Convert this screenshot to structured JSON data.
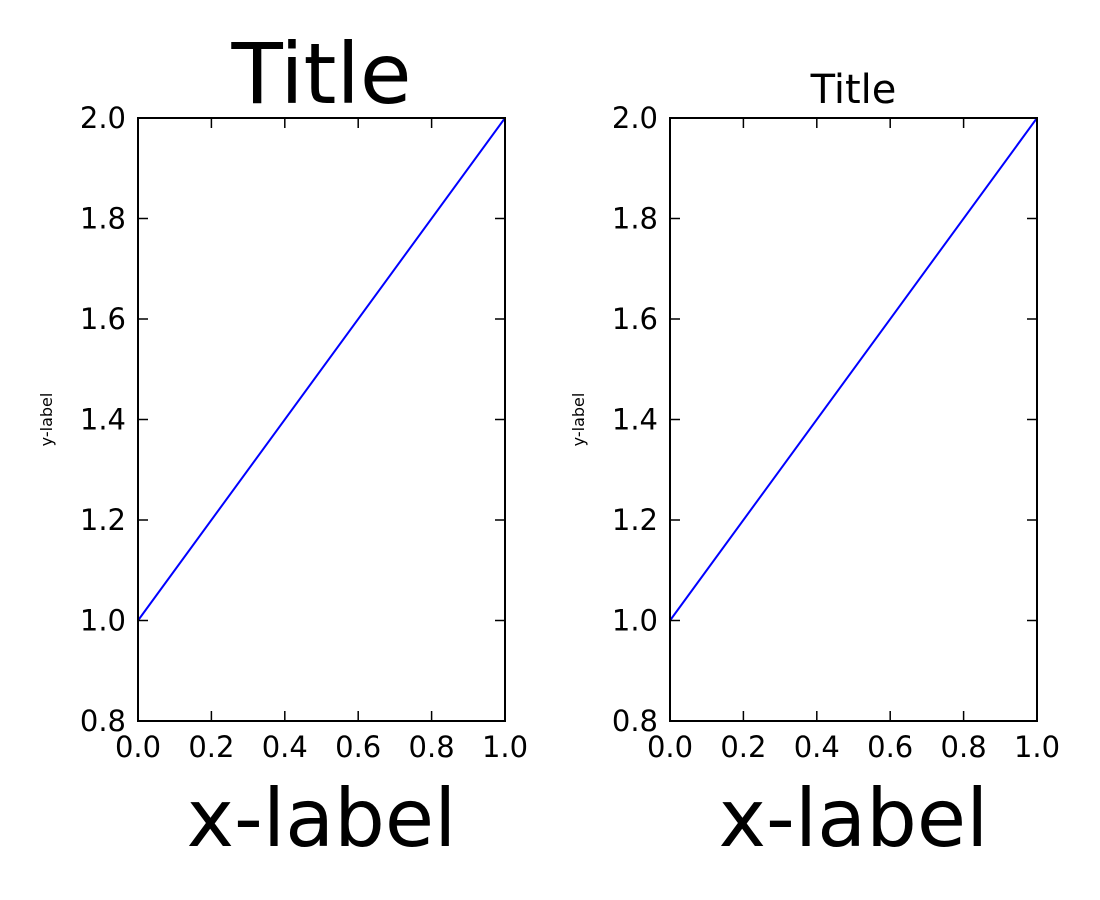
{
  "chart_data": [
    {
      "type": "line",
      "title": "Title",
      "xlabel": "x-label",
      "ylabel": "y-label",
      "xlim": [
        0.0,
        1.0
      ],
      "ylim": [
        0.8,
        2.0
      ],
      "xticks": [
        "0.0",
        "0.2",
        "0.4",
        "0.6",
        "0.8",
        "1.0"
      ],
      "yticks": [
        "0.8",
        "1.0",
        "1.2",
        "1.4",
        "1.6",
        "1.8",
        "2.0"
      ],
      "grid": false,
      "series": [
        {
          "x": [
            0.0,
            1.0
          ],
          "y": [
            1.0,
            2.0
          ],
          "color": "#0000ff"
        }
      ]
    },
    {
      "type": "line",
      "title": "Title",
      "xlabel": "x-label",
      "ylabel": "y-label",
      "xlim": [
        0.0,
        1.0
      ],
      "ylim": [
        0.8,
        2.0
      ],
      "xticks": [
        "0.0",
        "0.2",
        "0.4",
        "0.6",
        "0.8",
        "1.0"
      ],
      "yticks": [
        "0.8",
        "1.0",
        "1.2",
        "1.4",
        "1.6",
        "1.8",
        "2.0"
      ],
      "grid": false,
      "series": [
        {
          "x": [
            0.0,
            1.0
          ],
          "y": [
            1.0,
            2.0
          ],
          "color": "#0000ff"
        }
      ]
    }
  ]
}
